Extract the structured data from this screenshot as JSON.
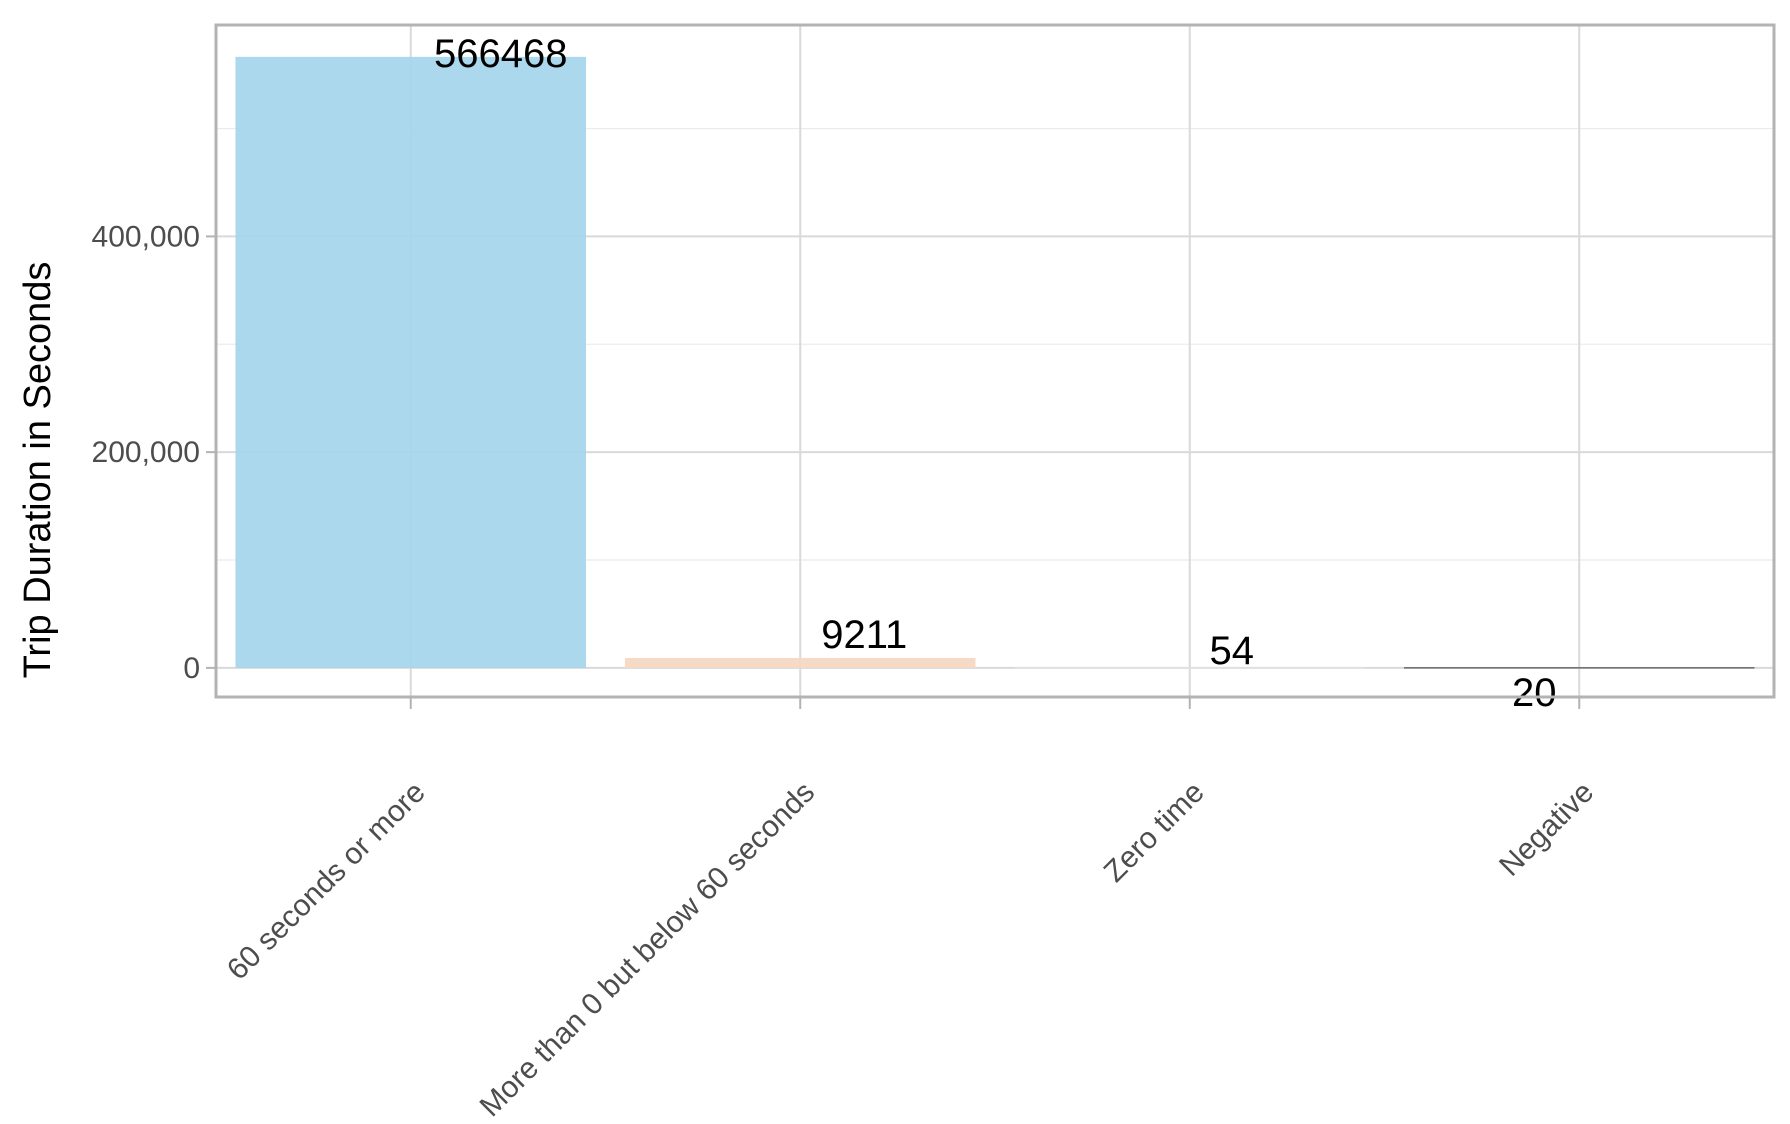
{
  "chart_data": {
    "type": "bar",
    "title": "",
    "xlabel": "",
    "ylabel": "Trip Duration in Seconds",
    "categories": [
      "60 seconds or more",
      "More than 0 but below 60 seconds",
      "Zero time",
      "Negative"
    ],
    "values": [
      566468,
      9211,
      54,
      20
    ],
    "data_labels": [
      "566468",
      "9211",
      "54",
      "20"
    ],
    "bar_colors": [
      "#a6d6eb",
      "#f7d8c2",
      "#e4e0ea",
      "#555555"
    ],
    "y_ticks": [
      0,
      200000,
      400000
    ],
    "y_tick_labels": [
      "0",
      "200,000",
      "400,000"
    ],
    "ylim": [
      -27000,
      596000
    ],
    "grid": true,
    "legend": "none",
    "colors": {
      "panel_border": "#b3b3b3",
      "grid_major": "#d9d9d9",
      "grid_minor": "#ebebeb",
      "axis_text": "#4d4d4d"
    }
  }
}
